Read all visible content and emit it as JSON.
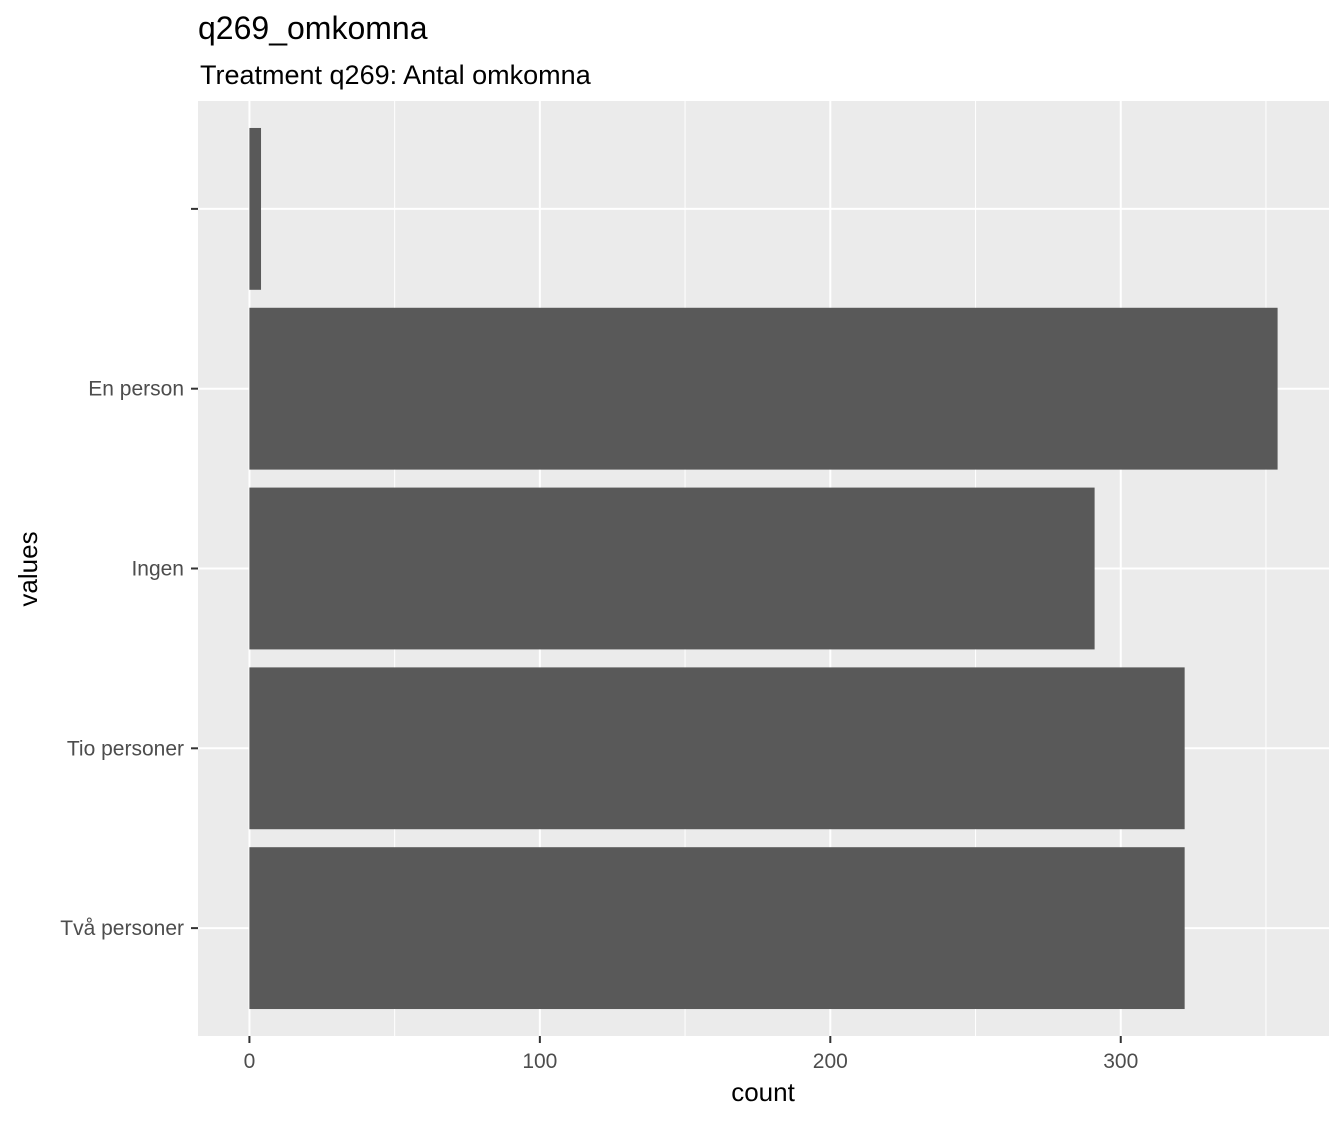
{
  "chart_data": {
    "type": "bar",
    "orientation": "horizontal",
    "title": "q269_omkomna",
    "subtitle": "Treatment q269: Antal omkomna",
    "xlabel": "count",
    "ylabel": "values",
    "categories": [
      "Två personer",
      "Tio personer",
      "Ingen",
      "En person",
      ""
    ],
    "values": [
      322,
      322,
      291,
      354,
      4
    ],
    "xlim": [
      -17.7,
      371.7
    ],
    "xticks": [
      0,
      100,
      200,
      300
    ],
    "grid": true,
    "legend": "none",
    "colors": {
      "bar": "#595959",
      "panel": "#ebebeb",
      "grid": "#ffffff"
    }
  }
}
